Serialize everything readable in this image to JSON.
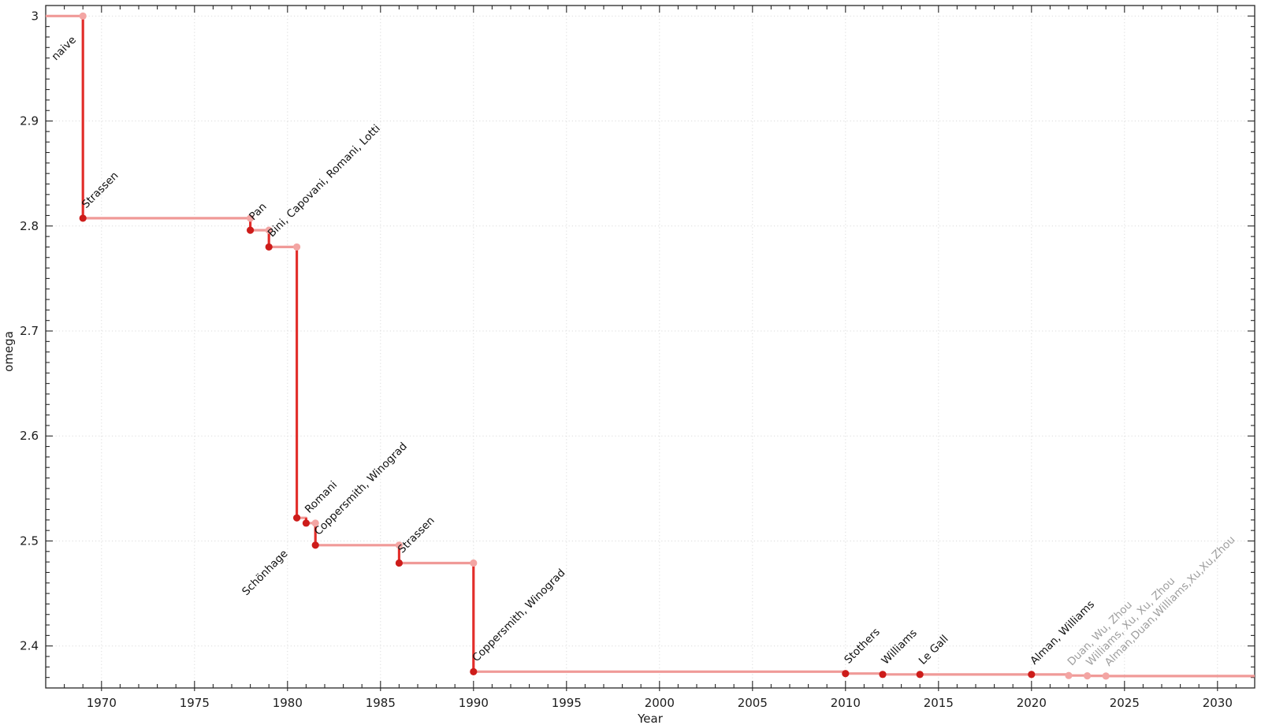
{
  "chart_data": {
    "type": "line",
    "step_style": "steps-post",
    "title": "",
    "xlabel": "Year",
    "ylabel": "omega",
    "xlim": [
      1967,
      2032
    ],
    "ylim": [
      2.36,
      3.01
    ],
    "grid": true,
    "legend": "none",
    "x_major_ticks": [
      {
        "v": 1970,
        "label": "1970"
      },
      {
        "v": 1975,
        "label": "1975"
      },
      {
        "v": 1980,
        "label": "1980"
      },
      {
        "v": 1985,
        "label": "1985"
      },
      {
        "v": 1990,
        "label": "1990"
      },
      {
        "v": 1995,
        "label": "1995"
      },
      {
        "v": 2000,
        "label": "2000"
      },
      {
        "v": 2005,
        "label": "2005"
      },
      {
        "v": 2010,
        "label": "2010"
      },
      {
        "v": 2015,
        "label": "2015"
      },
      {
        "v": 2020,
        "label": "2020"
      },
      {
        "v": 2025,
        "label": "2025"
      },
      {
        "v": 2030,
        "label": "2030"
      }
    ],
    "x_minor_step": 1,
    "y_major_ticks": [
      {
        "v": 2.4,
        "label": "2.4"
      },
      {
        "v": 2.5,
        "label": "2.5"
      },
      {
        "v": 2.6,
        "label": "2.6"
      },
      {
        "v": 2.7,
        "label": "2.7"
      },
      {
        "v": 2.8,
        "label": "2.8"
      },
      {
        "v": 2.9,
        "label": "2.9"
      },
      {
        "v": 3.0,
        "label": "3"
      }
    ],
    "y_minor_step": 0.01,
    "start": {
      "year": 1967,
      "omega": 3.0,
      "label": "naive",
      "label_offset": [
        13,
        57
      ]
    },
    "points": [
      {
        "year": 1969,
        "omega": 2.8074,
        "label": "Strassen",
        "confirmed": true
      },
      {
        "year": 1978,
        "omega": 2.796,
        "label": "Pan",
        "confirmed": true
      },
      {
        "year": 1979,
        "omega": 2.78,
        "label": "Bini, Capovani, Romani, Lotti",
        "confirmed": true
      },
      {
        "year": 1980.5,
        "omega": 2.522,
        "label": "Schönhage",
        "confirmed": true,
        "label_offset": [
          -64,
          99
        ]
      },
      {
        "year": 1981,
        "omega": 2.517,
        "label": "Romani",
        "confirmed": true
      },
      {
        "year": 1981.5,
        "omega": 2.496,
        "label": "Coppersmith, Winograd",
        "confirmed": true
      },
      {
        "year": 1986,
        "omega": 2.479,
        "label": "Strassen",
        "confirmed": true
      },
      {
        "year": 1990,
        "omega": 2.3755,
        "label": "Coppersmith, Winograd",
        "confirmed": true
      },
      {
        "year": 2010,
        "omega": 2.3737,
        "label": "Stothers",
        "confirmed": true
      },
      {
        "year": 2012,
        "omega": 2.3729,
        "label": "Williams",
        "confirmed": true
      },
      {
        "year": 2014,
        "omega": 2.3728639,
        "label": "Le Gall",
        "confirmed": true
      },
      {
        "year": 2020,
        "omega": 2.3728596,
        "label": "Alman, Williams",
        "confirmed": true
      },
      {
        "year": 2022,
        "omega": 2.371866,
        "label": "Duan, Wu, Zhou",
        "confirmed": false
      },
      {
        "year": 2023,
        "omega": 2.371552,
        "label": "Williams, Xu, Xu, Zhou",
        "confirmed": false
      },
      {
        "year": 2024,
        "omega": 2.371339,
        "label": "Alman,Duan,Williams,Xu,Xu,Zhou",
        "confirmed": false
      }
    ],
    "colors": {
      "step_line": "#f09a98",
      "drop_line": "#e22d2a",
      "point_confirmed": "#cd1c1a",
      "point_unconfirmed": "#f3a5a3",
      "grid": "#dbdbdb",
      "frame": "#262626",
      "tick_label": "#1c1c1c",
      "label_confirmed": "#101010",
      "label_unconfirmed": "#9e9e9e",
      "background": "#ffffff"
    },
    "annotation_rotation_deg": -45
  }
}
